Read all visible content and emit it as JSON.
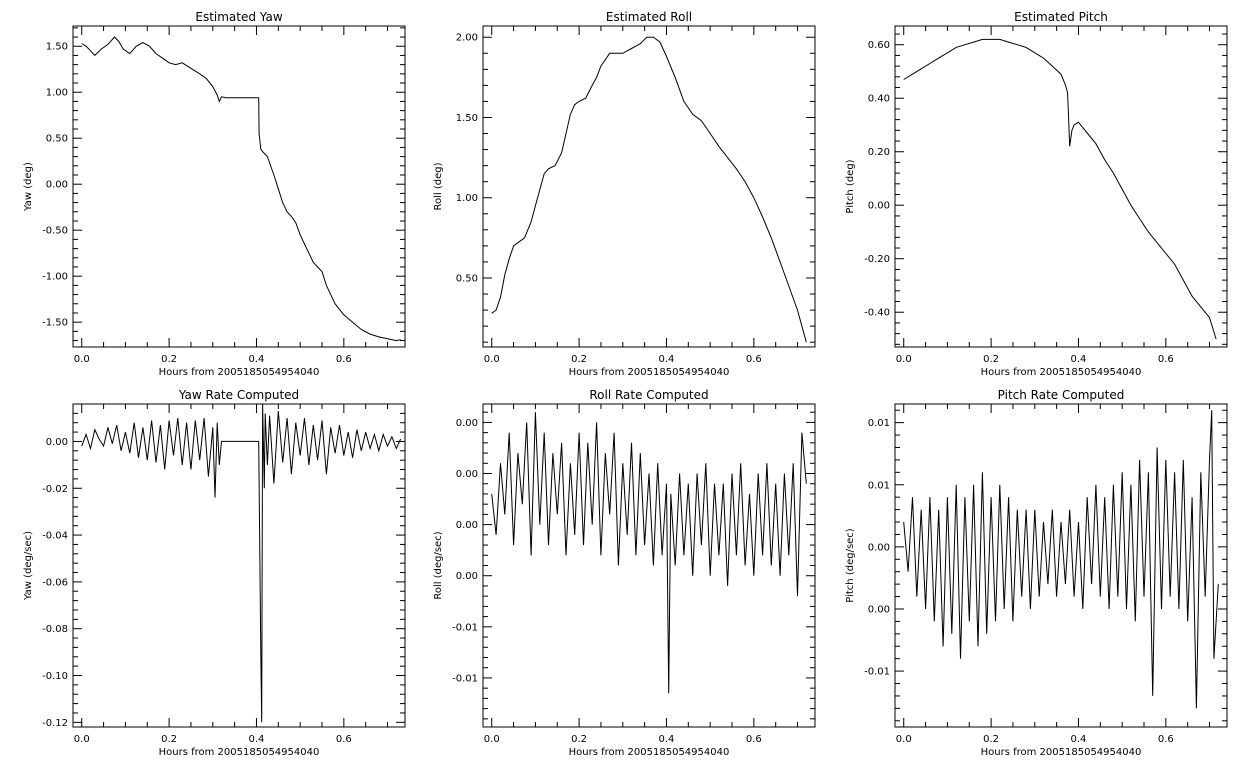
{
  "chart_data": [
    {
      "type": "line",
      "title": "Estimated Yaw",
      "xlabel": "Hours from 2005185054954040",
      "ylabel": "Yaw (deg)",
      "xlim": [
        -0.02,
        0.74
      ],
      "ylim": [
        -1.77,
        1.72
      ],
      "xticks": [
        0.0,
        0.2,
        0.4,
        0.6
      ],
      "xtick_labels": [
        "0.0",
        "0.2",
        "0.4",
        "0.6"
      ],
      "yticks": [
        1.5,
        1.0,
        0.5,
        0.0,
        -0.5,
        -1.0,
        -1.5
      ],
      "ytick_labels": [
        "1.50",
        "1.00",
        "0.50",
        "0.00",
        "-0.50",
        "-1.00",
        "-1.50"
      ],
      "series": [
        {
          "x": [
            0.0,
            0.01,
            0.02,
            0.03,
            0.045,
            0.06,
            0.075,
            0.085,
            0.095,
            0.11,
            0.125,
            0.14,
            0.155,
            0.17,
            0.185,
            0.2,
            0.215,
            0.23,
            0.25,
            0.27,
            0.285,
            0.3,
            0.31,
            0.315,
            0.32,
            0.33,
            0.35,
            0.37,
            0.39,
            0.405,
            0.406,
            0.41,
            0.415,
            0.425,
            0.44,
            0.45,
            0.46,
            0.47,
            0.48,
            0.49,
            0.5,
            0.51,
            0.52,
            0.53,
            0.54,
            0.55,
            0.56,
            0.57,
            0.58,
            0.6,
            0.62,
            0.64,
            0.66,
            0.68,
            0.7,
            0.72,
            0.73
          ],
          "y": [
            1.53,
            1.5,
            1.45,
            1.4,
            1.47,
            1.52,
            1.6,
            1.55,
            1.47,
            1.42,
            1.5,
            1.54,
            1.5,
            1.42,
            1.37,
            1.32,
            1.3,
            1.32,
            1.26,
            1.2,
            1.15,
            1.06,
            0.97,
            0.9,
            0.95,
            0.94,
            0.94,
            0.94,
            0.94,
            0.94,
            0.55,
            0.38,
            0.35,
            0.3,
            0.1,
            -0.05,
            -0.2,
            -0.3,
            -0.35,
            -0.42,
            -0.55,
            -0.65,
            -0.75,
            -0.85,
            -0.9,
            -0.95,
            -1.1,
            -1.2,
            -1.3,
            -1.42,
            -1.5,
            -1.58,
            -1.63,
            -1.66,
            -1.68,
            -1.7,
            -1.69
          ]
        }
      ]
    },
    {
      "type": "line",
      "title": "Estimated Roll",
      "xlabel": "Hours from 2005185054954040",
      "ylabel": "Roll (deg)",
      "xlim": [
        -0.02,
        0.74
      ],
      "ylim": [
        0.07,
        2.07
      ],
      "xticks": [
        0.0,
        0.2,
        0.4,
        0.6
      ],
      "xtick_labels": [
        "0.0",
        "0.2",
        "0.4",
        "0.6"
      ],
      "yticks": [
        2.0,
        1.5,
        1.0,
        0.5
      ],
      "ytick_labels": [
        "2.00",
        "1.50",
        "1.00",
        "0.50"
      ],
      "series": [
        {
          "x": [
            0.0,
            0.01,
            0.02,
            0.03,
            0.04,
            0.05,
            0.06,
            0.075,
            0.09,
            0.1,
            0.11,
            0.12,
            0.13,
            0.145,
            0.16,
            0.17,
            0.18,
            0.19,
            0.2,
            0.215,
            0.23,
            0.24,
            0.25,
            0.26,
            0.27,
            0.28,
            0.3,
            0.32,
            0.34,
            0.355,
            0.37,
            0.385,
            0.4,
            0.42,
            0.44,
            0.46,
            0.48,
            0.5,
            0.52,
            0.54,
            0.56,
            0.58,
            0.6,
            0.62,
            0.64,
            0.66,
            0.68,
            0.7,
            0.72
          ],
          "y": [
            0.28,
            0.3,
            0.38,
            0.52,
            0.62,
            0.7,
            0.72,
            0.75,
            0.85,
            0.95,
            1.05,
            1.15,
            1.18,
            1.2,
            1.28,
            1.4,
            1.52,
            1.58,
            1.6,
            1.62,
            1.7,
            1.75,
            1.82,
            1.86,
            1.9,
            1.9,
            1.9,
            1.93,
            1.96,
            2.0,
            2.0,
            1.97,
            1.88,
            1.75,
            1.6,
            1.52,
            1.48,
            1.4,
            1.32,
            1.25,
            1.18,
            1.1,
            1.0,
            0.88,
            0.75,
            0.6,
            0.45,
            0.3,
            0.1
          ]
        }
      ]
    },
    {
      "type": "line",
      "title": "Estimated Pitch",
      "xlabel": "Hours from 2005185054954040",
      "ylabel": "Pitch (deg)",
      "xlim": [
        -0.02,
        0.74
      ],
      "ylim": [
        -0.53,
        0.67
      ],
      "xticks": [
        0.0,
        0.2,
        0.4,
        0.6
      ],
      "xtick_labels": [
        "0.0",
        "0.2",
        "0.4",
        "0.6"
      ],
      "yticks": [
        0.6,
        0.4,
        0.2,
        0.0,
        -0.2,
        -0.4
      ],
      "ytick_labels": [
        "0.60",
        "0.40",
        "0.20",
        "0.00",
        "-0.20",
        "-0.40"
      ],
      "series": [
        {
          "x": [
            0.0,
            0.02,
            0.04,
            0.06,
            0.08,
            0.1,
            0.12,
            0.14,
            0.16,
            0.18,
            0.2,
            0.22,
            0.24,
            0.26,
            0.28,
            0.3,
            0.32,
            0.34,
            0.36,
            0.37,
            0.375,
            0.38,
            0.385,
            0.39,
            0.4,
            0.42,
            0.44,
            0.46,
            0.48,
            0.5,
            0.52,
            0.54,
            0.56,
            0.58,
            0.6,
            0.62,
            0.64,
            0.66,
            0.68,
            0.7,
            0.715
          ],
          "y": [
            0.47,
            0.49,
            0.51,
            0.53,
            0.55,
            0.57,
            0.59,
            0.6,
            0.61,
            0.62,
            0.62,
            0.62,
            0.61,
            0.6,
            0.59,
            0.57,
            0.55,
            0.52,
            0.49,
            0.45,
            0.42,
            0.22,
            0.28,
            0.3,
            0.31,
            0.27,
            0.23,
            0.17,
            0.12,
            0.06,
            0.0,
            -0.05,
            -0.1,
            -0.14,
            -0.18,
            -0.22,
            -0.28,
            -0.34,
            -0.38,
            -0.42,
            -0.5
          ]
        }
      ]
    },
    {
      "type": "line",
      "title": "Yaw Rate Computed",
      "xlabel": "Hours from 2005185054954040",
      "ylabel": "Yaw (deg/sec)",
      "xlim": [
        -0.02,
        0.74
      ],
      "ylim": [
        -0.122,
        0.016
      ],
      "xticks": [
        0.0,
        0.2,
        0.4,
        0.6
      ],
      "xtick_labels": [
        "0.0",
        "0.2",
        "0.4",
        "0.6"
      ],
      "yticks": [
        0.0,
        -0.02,
        -0.04,
        -0.06,
        -0.08,
        -0.1,
        -0.12
      ],
      "ytick_labels": [
        "0.00",
        "-0.02",
        "-0.04",
        "-0.06",
        "-0.08",
        "-0.10",
        "-0.12"
      ],
      "series": [
        {
          "x": [
            0.0,
            0.01,
            0.02,
            0.03,
            0.04,
            0.05,
            0.06,
            0.07,
            0.08,
            0.09,
            0.1,
            0.11,
            0.12,
            0.13,
            0.14,
            0.15,
            0.16,
            0.17,
            0.18,
            0.19,
            0.2,
            0.21,
            0.22,
            0.23,
            0.24,
            0.25,
            0.26,
            0.27,
            0.28,
            0.29,
            0.3,
            0.305,
            0.31,
            0.315,
            0.32,
            0.33,
            0.35,
            0.38,
            0.4,
            0.405,
            0.41,
            0.412,
            0.414,
            0.418,
            0.42,
            0.425,
            0.43,
            0.44,
            0.45,
            0.46,
            0.47,
            0.48,
            0.49,
            0.5,
            0.51,
            0.52,
            0.53,
            0.54,
            0.55,
            0.56,
            0.57,
            0.58,
            0.59,
            0.6,
            0.61,
            0.62,
            0.63,
            0.64,
            0.65,
            0.66,
            0.67,
            0.68,
            0.69,
            0.7,
            0.71,
            0.72,
            0.73
          ],
          "y": [
            -0.002,
            0.003,
            -0.003,
            0.005,
            0.001,
            -0.002,
            0.006,
            -0.001,
            0.007,
            -0.004,
            0.004,
            -0.005,
            0.008,
            -0.007,
            0.006,
            -0.008,
            0.009,
            -0.009,
            0.007,
            -0.012,
            0.009,
            -0.006,
            0.01,
            -0.01,
            0.008,
            -0.012,
            0.009,
            -0.008,
            0.01,
            -0.015,
            0.006,
            -0.024,
            0.008,
            -0.01,
            0.0,
            0.0,
            0.0,
            0.0,
            0.0,
            0.0,
            -0.09,
            -0.12,
            0.016,
            -0.02,
            0.012,
            -0.01,
            0.011,
            -0.018,
            0.013,
            -0.009,
            0.01,
            -0.014,
            0.008,
            -0.006,
            0.01,
            -0.01,
            0.007,
            -0.008,
            0.009,
            -0.014,
            0.006,
            -0.005,
            0.007,
            -0.006,
            0.004,
            -0.007,
            0.005,
            -0.004,
            0.004,
            -0.003,
            0.003,
            -0.004,
            0.003,
            -0.002,
            0.002,
            -0.003,
            0.001
          ]
        }
      ]
    },
    {
      "type": "line",
      "title": "Roll Rate Computed",
      "xlabel": "Hours from 2005185054954040",
      "ylabel": "Roll (deg/sec)",
      "xlim": [
        -0.02,
        0.74
      ],
      "ylim": [
        -0.0198,
        0.0118
      ],
      "xticks": [
        0.0,
        0.2,
        0.4,
        0.6
      ],
      "xtick_labels": [
        "0.0",
        "0.2",
        "0.4",
        "0.6"
      ],
      "yticks": [
        0.01,
        0.005,
        0.0,
        -0.005,
        -0.01,
        -0.015
      ],
      "ytick_labels": [
        "0.00",
        "0.00",
        "0.00",
        "0.00",
        "-0.01",
        "-0.01"
      ],
      "series": [
        {
          "x": [
            0.0,
            0.01,
            0.02,
            0.03,
            0.04,
            0.05,
            0.06,
            0.07,
            0.08,
            0.09,
            0.1,
            0.11,
            0.12,
            0.13,
            0.14,
            0.15,
            0.16,
            0.17,
            0.18,
            0.19,
            0.2,
            0.21,
            0.22,
            0.23,
            0.24,
            0.25,
            0.26,
            0.27,
            0.28,
            0.29,
            0.3,
            0.31,
            0.32,
            0.33,
            0.34,
            0.35,
            0.36,
            0.37,
            0.38,
            0.39,
            0.4,
            0.405,
            0.41,
            0.42,
            0.43,
            0.44,
            0.45,
            0.46,
            0.47,
            0.48,
            0.49,
            0.5,
            0.51,
            0.52,
            0.53,
            0.54,
            0.55,
            0.56,
            0.57,
            0.58,
            0.59,
            0.6,
            0.61,
            0.62,
            0.63,
            0.64,
            0.65,
            0.66,
            0.67,
            0.68,
            0.69,
            0.7,
            0.71,
            0.72
          ],
          "y": [
            0.003,
            -0.001,
            0.006,
            0.001,
            0.009,
            -0.002,
            0.007,
            0.002,
            0.01,
            -0.003,
            0.011,
            0.0,
            0.009,
            -0.002,
            0.007,
            0.001,
            0.008,
            -0.003,
            0.006,
            -0.001,
            0.009,
            -0.002,
            0.008,
            0.0,
            0.01,
            -0.003,
            0.007,
            0.001,
            0.009,
            -0.004,
            0.006,
            -0.001,
            0.008,
            -0.003,
            0.007,
            -0.002,
            0.005,
            -0.004,
            0.006,
            -0.003,
            0.004,
            -0.0165,
            0.003,
            -0.004,
            0.005,
            -0.003,
            0.004,
            -0.005,
            0.005,
            -0.002,
            0.006,
            -0.005,
            0.004,
            -0.003,
            0.004,
            -0.006,
            0.005,
            -0.003,
            0.006,
            -0.004,
            0.003,
            -0.005,
            0.005,
            -0.003,
            0.006,
            -0.004,
            0.004,
            -0.005,
            0.005,
            -0.003,
            0.006,
            -0.007,
            0.009,
            0.004
          ]
        }
      ]
    },
    {
      "type": "line",
      "title": "Pitch Rate Computed",
      "xlabel": "Hours from 2005185054954040",
      "ylabel": "Pitch (deg/sec)",
      "xlim": [
        -0.02,
        0.74
      ],
      "ylim": [
        -0.0145,
        0.0115
      ],
      "xticks": [
        0.0,
        0.2,
        0.4,
        0.6
      ],
      "xtick_labels": [
        "0.0",
        "0.2",
        "0.4",
        "0.6"
      ],
      "yticks": [
        0.01,
        0.005,
        0.0,
        -0.005,
        -0.01
      ],
      "ytick_labels": [
        "0.01",
        "0.01",
        "0.00",
        "0.00",
        "-0.01"
      ],
      "series": [
        {
          "x": [
            0.0,
            0.01,
            0.02,
            0.03,
            0.04,
            0.05,
            0.06,
            0.07,
            0.08,
            0.09,
            0.1,
            0.11,
            0.12,
            0.13,
            0.14,
            0.15,
            0.16,
            0.17,
            0.18,
            0.19,
            0.2,
            0.21,
            0.22,
            0.23,
            0.24,
            0.25,
            0.26,
            0.27,
            0.28,
            0.29,
            0.3,
            0.31,
            0.32,
            0.33,
            0.34,
            0.35,
            0.36,
            0.37,
            0.38,
            0.39,
            0.4,
            0.41,
            0.42,
            0.43,
            0.44,
            0.45,
            0.46,
            0.47,
            0.48,
            0.49,
            0.5,
            0.51,
            0.52,
            0.53,
            0.54,
            0.55,
            0.56,
            0.57,
            0.58,
            0.59,
            0.6,
            0.61,
            0.62,
            0.63,
            0.64,
            0.65,
            0.66,
            0.67,
            0.68,
            0.69,
            0.7,
            0.705,
            0.71,
            0.72
          ],
          "y": [
            0.002,
            -0.002,
            0.004,
            -0.004,
            0.003,
            -0.005,
            0.004,
            -0.006,
            0.003,
            -0.008,
            0.004,
            -0.007,
            0.005,
            -0.009,
            0.004,
            -0.006,
            0.005,
            -0.008,
            0.006,
            -0.007,
            0.004,
            -0.006,
            0.005,
            -0.005,
            0.004,
            -0.006,
            0.003,
            -0.004,
            0.003,
            -0.005,
            0.003,
            -0.004,
            0.002,
            -0.003,
            0.003,
            -0.004,
            0.002,
            -0.003,
            0.003,
            -0.004,
            0.002,
            -0.005,
            0.004,
            -0.003,
            0.005,
            -0.004,
            0.004,
            -0.005,
            0.005,
            -0.004,
            0.006,
            -0.005,
            0.005,
            -0.006,
            0.007,
            -0.004,
            0.006,
            -0.012,
            0.008,
            -0.005,
            0.007,
            -0.004,
            0.006,
            -0.005,
            0.007,
            -0.006,
            0.004,
            -0.013,
            0.006,
            -0.004,
            0.007,
            0.011,
            -0.009,
            -0.003
          ]
        }
      ]
    }
  ]
}
